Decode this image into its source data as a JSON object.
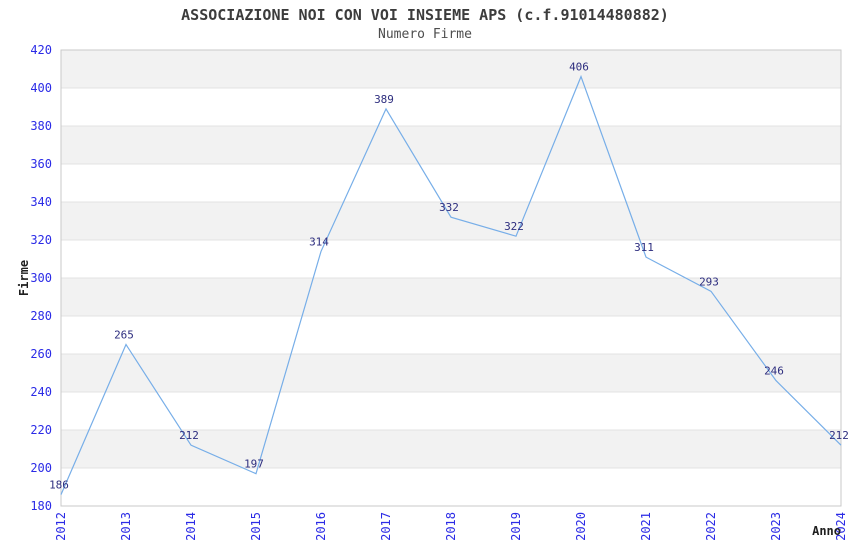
{
  "title": "ASSOCIAZIONE NOI CON VOI INSIEME APS (c.f.91014480882)",
  "subtitle": "Numero Firme",
  "chart_data": {
    "type": "line",
    "title": "ASSOCIAZIONE NOI CON VOI INSIEME APS (c.f.91014480882)",
    "subtitle": "Numero Firme",
    "xlabel": "Anno",
    "ylabel": "Firme",
    "categories": [
      "2012",
      "2013",
      "2014",
      "2015",
      "2016",
      "2017",
      "2018",
      "2019",
      "2020",
      "2021",
      "2022",
      "2023",
      "2024"
    ],
    "values": [
      186,
      265,
      212,
      197,
      314,
      389,
      332,
      322,
      406,
      311,
      293,
      246,
      212
    ],
    "ylim": [
      180,
      420
    ],
    "ytick_step": 20,
    "yticks": [
      180,
      200,
      220,
      240,
      260,
      280,
      300,
      320,
      340,
      360,
      380,
      400,
      420
    ],
    "grid": true,
    "background_bands": "alternating-horizontal",
    "legend_position": "none",
    "point_labels_visible": true
  },
  "colors": {
    "line": "#77aee8",
    "point_label": "#2e2e7f",
    "tick_label": "#2b2be6",
    "title": "#3c3c3c",
    "subtitle": "#4d4d4d",
    "axis_title": "#1f1f1f",
    "band": "#f2f2f2",
    "gridline": "#e3e3e3",
    "plot_border": "#c9c9c9",
    "plot_background": "#ffffff"
  }
}
